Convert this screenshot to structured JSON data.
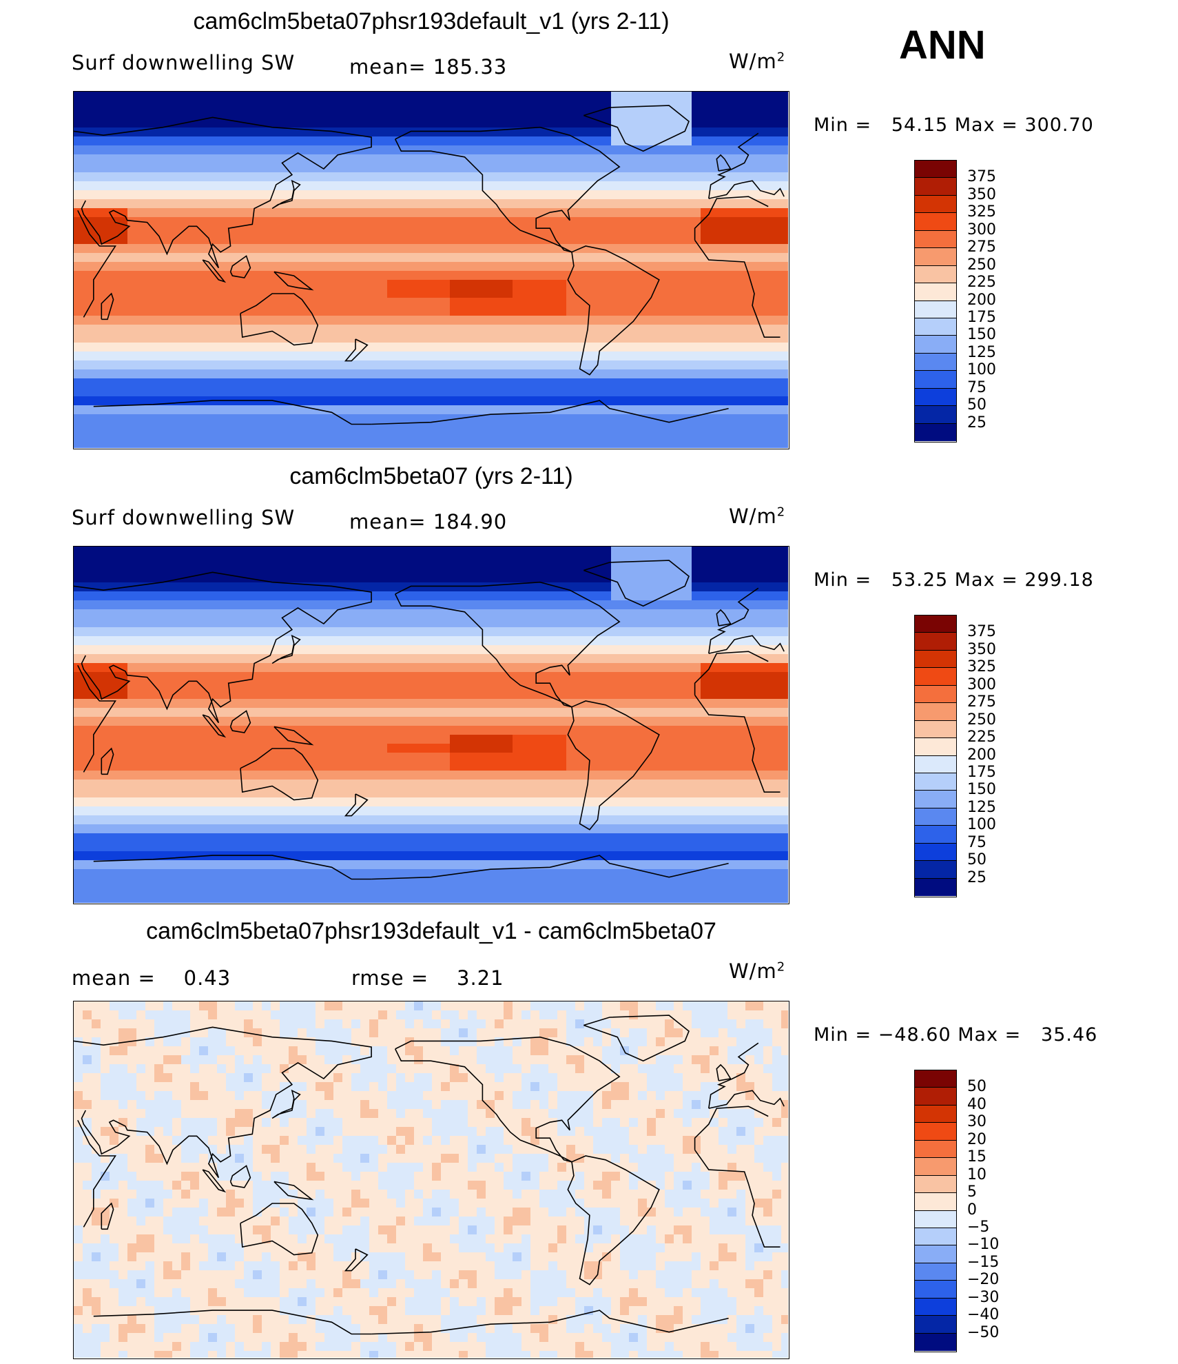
{
  "season": "ANN",
  "panels": [
    {
      "title": "cam6clm5beta07phsr193default_v1 (yrs 2-11)",
      "left_label": "Surf downwelling SW",
      "mid_label": "mean=",
      "mid_value": "185.33",
      "units": "W/m",
      "units_sup": "2",
      "min_label": "Min =",
      "min_value": "54.15",
      "max_label": "Max =",
      "max_value": "300.70",
      "kind": "abs",
      "mean_shift": 0.0
    },
    {
      "title": "cam6clm5beta07 (yrs 2-11)",
      "left_label": "Surf downwelling SW",
      "mid_label": "mean=",
      "mid_value": "184.90",
      "units": "W/m",
      "units_sup": "2",
      "min_label": "Min =",
      "min_value": "53.25",
      "max_label": "Max =",
      "max_value": "299.18",
      "kind": "abs",
      "mean_shift": -1.0
    },
    {
      "title": "cam6clm5beta07phsr193default_v1 - cam6clm5beta07",
      "left_label": "mean =",
      "left_value": "0.43",
      "mid_label": "rmse =",
      "mid_value": "3.21",
      "units": "W/m",
      "units_sup": "2",
      "min_label": "Min =",
      "min_value": "−48.60",
      "max_label": "Max =",
      "max_value": "35.46",
      "kind": "diff",
      "mean_shift": 0.0
    }
  ],
  "colorbars": {
    "abs": {
      "labels": [
        "375",
        "350",
        "325",
        "300",
        "275",
        "250",
        "225",
        "200",
        "175",
        "150",
        "125",
        "100",
        "75",
        "50",
        "25"
      ],
      "colors": [
        "#7a0403",
        "#b01e05",
        "#d33404",
        "#ef4a14",
        "#f46f3d",
        "#f79a6e",
        "#f9c3a3",
        "#fde8d7",
        "#dbe9fb",
        "#b5cffa",
        "#89adf6",
        "#5a88f0",
        "#2d62ea",
        "#0d3fdc",
        "#0426a6",
        "#000c80"
      ]
    },
    "diff": {
      "labels": [
        "50",
        "40",
        "30",
        "20",
        "15",
        "10",
        "5",
        "0",
        "−5",
        "−10",
        "−15",
        "−20",
        "−30",
        "−40",
        "−50"
      ],
      "colors": [
        "#7a0403",
        "#b01e05",
        "#d33404",
        "#ef4a14",
        "#f46f3d",
        "#f79a6e",
        "#f9c3a3",
        "#fde8d7",
        "#dbe9fb",
        "#b5cffa",
        "#89adf6",
        "#5a88f0",
        "#2d62ea",
        "#0d3fdc",
        "#0426a6",
        "#000c80"
      ]
    }
  },
  "chart_data": [
    {
      "type": "heatmap",
      "title": "cam6clm5beta07phsr193default_v1 (yrs 2-11)",
      "variable": "Surf downwelling SW",
      "units": "W/m2",
      "mean": 185.33,
      "min": 54.15,
      "max": 300.7,
      "levels": [
        25,
        50,
        75,
        100,
        125,
        150,
        175,
        200,
        225,
        250,
        275,
        300,
        325,
        350,
        375
      ]
    },
    {
      "type": "heatmap",
      "title": "cam6clm5beta07 (yrs 2-11)",
      "variable": "Surf downwelling SW",
      "units": "W/m2",
      "mean": 184.9,
      "min": 53.25,
      "max": 299.18,
      "levels": [
        25,
        50,
        75,
        100,
        125,
        150,
        175,
        200,
        225,
        250,
        275,
        300,
        325,
        350,
        375
      ]
    },
    {
      "type": "heatmap",
      "title": "cam6clm5beta07phsr193default_v1 - cam6clm5beta07",
      "units": "W/m2",
      "mean": 0.43,
      "rmse": 3.21,
      "min": -48.6,
      "max": 35.46,
      "levels": [
        -50,
        -40,
        -30,
        -20,
        -15,
        -10,
        -5,
        0,
        5,
        10,
        15,
        20,
        30,
        40,
        50
      ]
    }
  ]
}
